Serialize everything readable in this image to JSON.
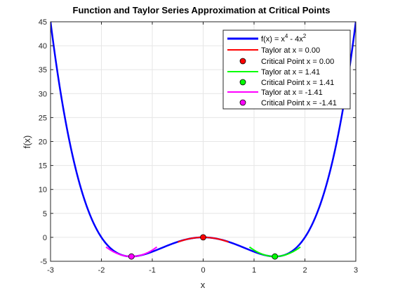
{
  "chart_data": {
    "type": "line",
    "title": "Function and Taylor Series Approximation at Critical Points",
    "xlabel": "x",
    "ylabel": "f(x)",
    "xlim": [
      -3,
      3
    ],
    "ylim": [
      -5,
      45
    ],
    "xticks": [
      "-3",
      "-2",
      "-1",
      "0",
      "1",
      "2",
      "3"
    ],
    "yticks": [
      "-5",
      "0",
      "5",
      "10",
      "15",
      "20",
      "25",
      "30",
      "35",
      "40",
      "45"
    ],
    "grid": true,
    "legend_position": "top-right",
    "function": {
      "legend_label": "f(x) = x",
      "legend_sup1": "4",
      "legend_mid": " - 4x",
      "legend_sup2": "2",
      "color": "#0000ff",
      "x_range": [
        -3,
        3
      ]
    },
    "critical_points": [
      {
        "x": 0.0,
        "y": 0.0,
        "taylor_label": "Taylor at x = 0.00",
        "point_label": "Critical Point x = 0.00",
        "color": "#ff0000",
        "taylor_x_range": [
          -0.5,
          0.5
        ]
      },
      {
        "x": 1.41,
        "y": -4.0,
        "taylor_label": "Taylor at x = 1.41",
        "point_label": "Critical Point x = 1.41",
        "color": "#00ff00",
        "taylor_x_range": [
          0.91,
          1.91
        ]
      },
      {
        "x": -1.41,
        "y": -4.0,
        "taylor_label": "Taylor at x = -1.41",
        "point_label": "Critical Point x = -1.41",
        "color": "#ff00ff",
        "taylor_x_range": [
          -1.91,
          -0.91
        ]
      }
    ]
  }
}
